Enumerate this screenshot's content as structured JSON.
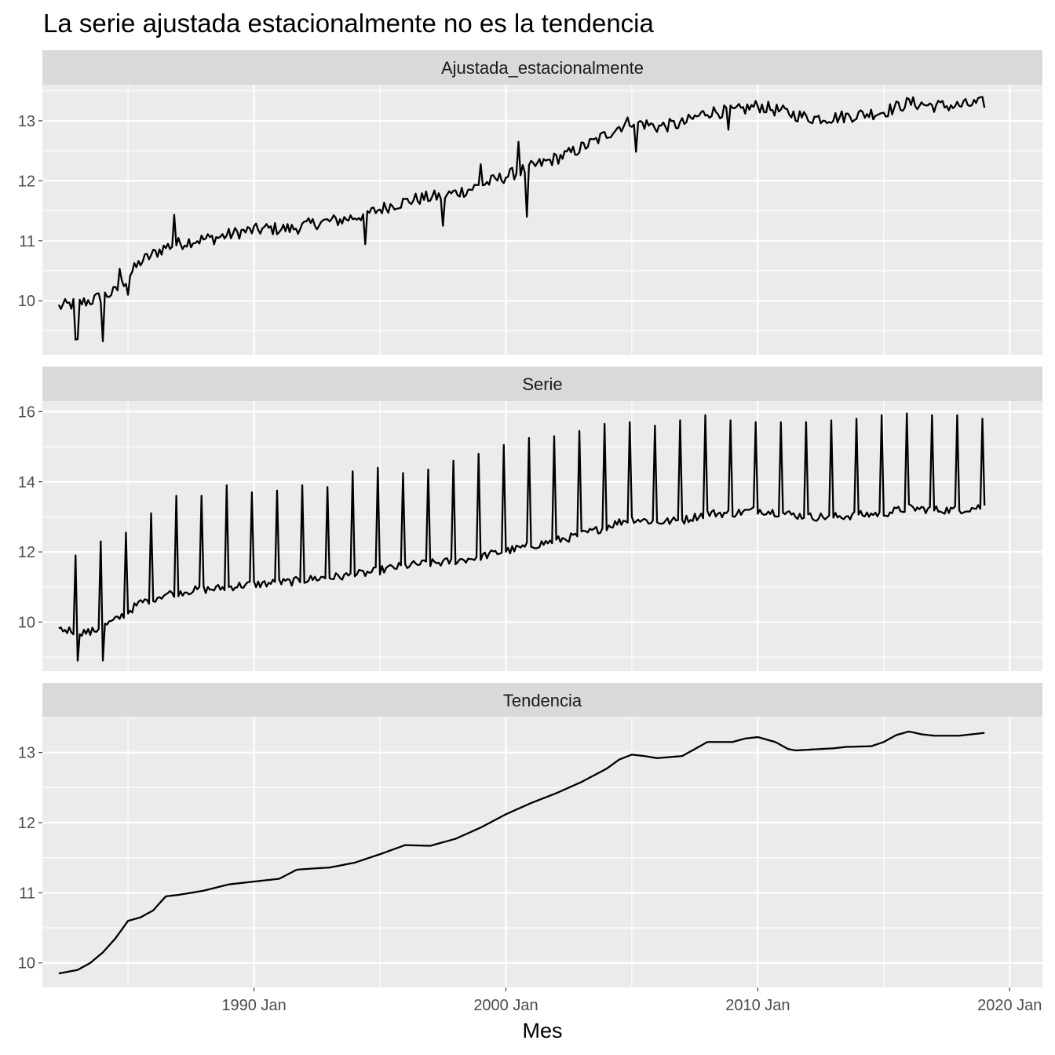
{
  "chart_data": {
    "type": "line",
    "title": "La serie ajustada estacionalmente no es la tendencia",
    "xlabel": "Mes",
    "ylabel": "",
    "x_range": [
      1981.6,
      2021.3
    ],
    "x_ticks": [
      {
        "label": "1990 Jan",
        "value": 1990.0
      },
      {
        "label": "2000 Jan",
        "value": 2000.0
      },
      {
        "label": "2010 Jan",
        "value": 2010.0
      },
      {
        "label": "2020 Jan",
        "value": 2020.0
      }
    ],
    "grid": true,
    "colors": {
      "panel": "#ebebeb",
      "strip": "#d9d9d9",
      "grid": "#ffffff",
      "line": "#000000"
    },
    "start": 1982.25,
    "step": 0.0833333,
    "panels": [
      {
        "name": "Ajustada_estacionalmente",
        "ylim": [
          9.1,
          13.6
        ],
        "y_ticks": [
          10,
          11,
          12,
          13
        ],
        "anchors": [
          [
            1982.25,
            9.9
          ],
          [
            1983.5,
            10.0
          ],
          [
            1984.5,
            10.15
          ],
          [
            1985.5,
            10.65
          ],
          [
            1986.5,
            10.9
          ],
          [
            1987.5,
            11.0
          ],
          [
            1988.5,
            11.05
          ],
          [
            1989.5,
            11.15
          ],
          [
            1990.5,
            11.2
          ],
          [
            1991.5,
            11.2
          ],
          [
            1992.5,
            11.3
          ],
          [
            1993.5,
            11.35
          ],
          [
            1994.5,
            11.45
          ],
          [
            1995.5,
            11.6
          ],
          [
            1996.5,
            11.7
          ],
          [
            1997.5,
            11.75
          ],
          [
            1998.5,
            11.85
          ],
          [
            1999.5,
            12.0
          ],
          [
            2000.5,
            12.15
          ],
          [
            2001.5,
            12.3
          ],
          [
            2002.5,
            12.45
          ],
          [
            2003.5,
            12.65
          ],
          [
            2004.5,
            12.9
          ],
          [
            2005.0,
            13.0
          ],
          [
            2006.0,
            12.9
          ],
          [
            2007.0,
            12.95
          ],
          [
            2008.0,
            13.15
          ],
          [
            2009.0,
            13.15
          ],
          [
            2010.0,
            13.25
          ],
          [
            2011.0,
            13.15
          ],
          [
            2012.0,
            13.05
          ],
          [
            2013.0,
            13.05
          ],
          [
            2014.0,
            13.1
          ],
          [
            2015.0,
            13.15
          ],
          [
            2016.0,
            13.3
          ],
          [
            2017.0,
            13.25
          ],
          [
            2018.0,
            13.25
          ],
          [
            2019.0,
            13.3
          ]
        ],
        "noise": 0.11,
        "spikes": [
          [
            1982.9,
            -0.6
          ],
          [
            1983.0,
            -0.6
          ],
          [
            1984.0,
            -0.75
          ],
          [
            1984.7,
            0.3
          ],
          [
            1985.0,
            -0.3
          ],
          [
            1986.8,
            0.5
          ],
          [
            1994.4,
            -0.5
          ],
          [
            1997.5,
            -0.5
          ],
          [
            1999.0,
            0.35
          ],
          [
            2000.5,
            0.5
          ],
          [
            2000.8,
            -0.8
          ],
          [
            2005.2,
            -0.5
          ],
          [
            2008.8,
            -0.3
          ]
        ]
      },
      {
        "name": "Serie",
        "ylim": [
          8.6,
          16.3
        ],
        "y_ticks": [
          10,
          12,
          14,
          16
        ],
        "anchors": [
          [
            1982.25,
            9.8
          ],
          [
            1983.5,
            9.7
          ],
          [
            1984.5,
            10.05
          ],
          [
            1985.5,
            10.55
          ],
          [
            1986.5,
            10.8
          ],
          [
            1987.5,
            10.9
          ],
          [
            1988.5,
            10.95
          ],
          [
            1989.5,
            11.05
          ],
          [
            1990.5,
            11.1
          ],
          [
            1991.5,
            11.15
          ],
          [
            1992.5,
            11.25
          ],
          [
            1993.5,
            11.3
          ],
          [
            1994.5,
            11.4
          ],
          [
            1995.5,
            11.55
          ],
          [
            1996.5,
            11.65
          ],
          [
            1997.5,
            11.7
          ],
          [
            1998.5,
            11.8
          ],
          [
            1999.5,
            11.95
          ],
          [
            2000.5,
            12.1
          ],
          [
            2001.5,
            12.25
          ],
          [
            2002.5,
            12.4
          ],
          [
            2003.5,
            12.6
          ],
          [
            2004.5,
            12.85
          ],
          [
            2005.0,
            12.95
          ],
          [
            2006.0,
            12.85
          ],
          [
            2007.0,
            12.9
          ],
          [
            2008.0,
            13.1
          ],
          [
            2009.0,
            13.1
          ],
          [
            2010.0,
            13.2
          ],
          [
            2011.0,
            13.1
          ],
          [
            2012.0,
            13.0
          ],
          [
            2013.0,
            13.0
          ],
          [
            2014.0,
            13.05
          ],
          [
            2015.0,
            13.1
          ],
          [
            2016.0,
            13.25
          ],
          [
            2017.0,
            13.2
          ],
          [
            2018.0,
            13.2
          ],
          [
            2019.0,
            13.3
          ]
        ],
        "noise": 0.12,
        "december_peaks": [
          11.9,
          12.3,
          12.55,
          13.1,
          13.6,
          13.6,
          13.9,
          13.7,
          13.75,
          13.9,
          13.85,
          14.3,
          14.4,
          14.25,
          14.35,
          14.6,
          14.8,
          15.05,
          15.25,
          15.3,
          15.45,
          15.65,
          15.7,
          15.6,
          15.75,
          15.9,
          15.75,
          15.7,
          15.7,
          15.7,
          15.75,
          15.8,
          15.9,
          15.95,
          15.9,
          15.9,
          15.8
        ],
        "january_dips": [
          8.9,
          8.9,
          9.7,
          9.6,
          10.1,
          10.2,
          9.9,
          10.4,
          10.5,
          10.5,
          10.4,
          10.6,
          10.6,
          10.9,
          10.8,
          11.0,
          11.1,
          11.35,
          11.6,
          11.8,
          11.85,
          11.95,
          12.1,
          12.0,
          11.9,
          12.1,
          11.95,
          11.85,
          11.9,
          11.95,
          11.8,
          11.85,
          11.85,
          11.95,
          11.9,
          11.85
        ]
      },
      {
        "name": "Tendencia",
        "ylim": [
          9.65,
          13.5
        ],
        "y_ticks": [
          10,
          11,
          12,
          13
        ],
        "anchors": [
          [
            1982.25,
            9.85
          ],
          [
            1983.0,
            9.9
          ],
          [
            1983.5,
            10.0
          ],
          [
            1984.0,
            10.15
          ],
          [
            1984.5,
            10.35
          ],
          [
            1985.0,
            10.6
          ],
          [
            1985.5,
            10.65
          ],
          [
            1986.0,
            10.75
          ],
          [
            1986.5,
            10.95
          ],
          [
            1987.0,
            10.97
          ],
          [
            1988.0,
            11.03
          ],
          [
            1989.0,
            11.12
          ],
          [
            1990.0,
            11.16
          ],
          [
            1991.0,
            11.2
          ],
          [
            1991.7,
            11.33
          ],
          [
            1992.5,
            11.35
          ],
          [
            1993.0,
            11.36
          ],
          [
            1994.0,
            11.43
          ],
          [
            1995.0,
            11.55
          ],
          [
            1996.0,
            11.68
          ],
          [
            1997.0,
            11.67
          ],
          [
            1998.0,
            11.77
          ],
          [
            1999.0,
            11.93
          ],
          [
            2000.0,
            12.12
          ],
          [
            2001.0,
            12.28
          ],
          [
            2002.0,
            12.42
          ],
          [
            2003.0,
            12.58
          ],
          [
            2004.0,
            12.77
          ],
          [
            2004.5,
            12.9
          ],
          [
            2005.0,
            12.97
          ],
          [
            2005.5,
            12.95
          ],
          [
            2006.0,
            12.92
          ],
          [
            2007.0,
            12.95
          ],
          [
            2007.5,
            13.05
          ],
          [
            2008.0,
            13.15
          ],
          [
            2009.0,
            13.15
          ],
          [
            2009.5,
            13.2
          ],
          [
            2010.0,
            13.22
          ],
          [
            2010.7,
            13.15
          ],
          [
            2011.2,
            13.05
          ],
          [
            2011.5,
            13.03
          ],
          [
            2012.5,
            13.05
          ],
          [
            2013.0,
            13.06
          ],
          [
            2013.5,
            13.08
          ],
          [
            2014.5,
            13.09
          ],
          [
            2015.0,
            13.15
          ],
          [
            2015.5,
            13.25
          ],
          [
            2016.0,
            13.3
          ],
          [
            2016.5,
            13.26
          ],
          [
            2017.0,
            13.24
          ],
          [
            2018.0,
            13.24
          ],
          [
            2018.5,
            13.26
          ],
          [
            2019.0,
            13.28
          ]
        ],
        "noise": 0
      }
    ],
    "end": 2019.0
  }
}
